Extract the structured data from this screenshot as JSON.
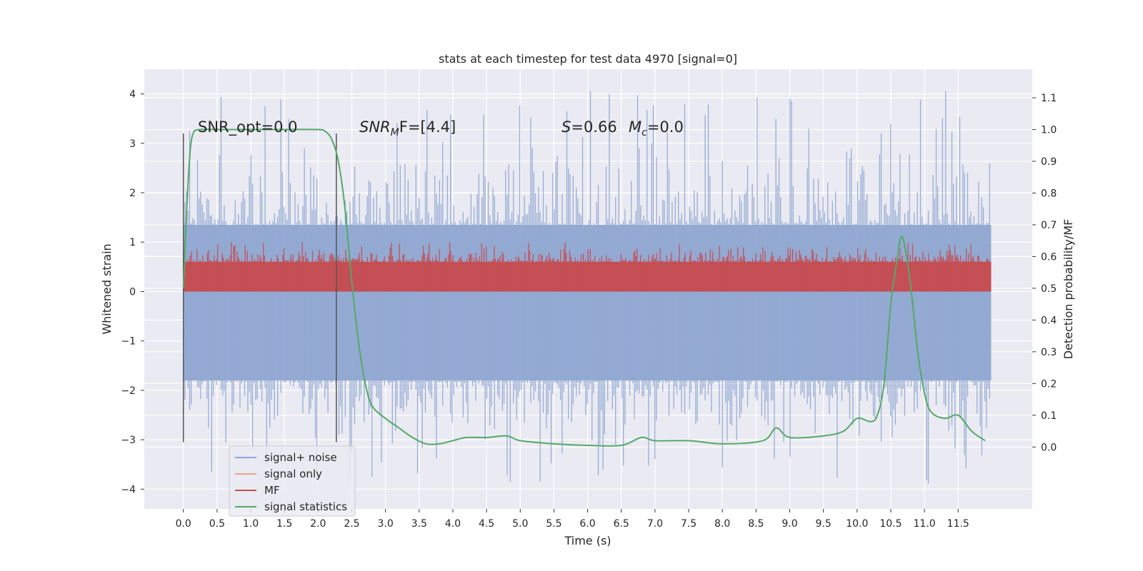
{
  "chart_data": {
    "type": "line",
    "title": "stats at each timestep for test data 4970 [signal=0]",
    "xlabel": "Time (s)",
    "ylabel": "Whitened strain",
    "ylabel_right": "Detection probability/MF",
    "xlim": [
      -0.58,
      12.6
    ],
    "ylim": [
      -4.4,
      4.5
    ],
    "ylim_right": [
      -0.195,
      1.19
    ],
    "x_ticks": [
      "0.0",
      "0.5",
      "1.0",
      "1.5",
      "2.0",
      "2.5",
      "3.0",
      "3.5",
      "4.0",
      "4.5",
      "5.0",
      "5.5",
      "6.0",
      "6.5",
      "7.0",
      "7.5",
      "8.0",
      "8.5",
      "9.0",
      "9.5",
      "10.0",
      "10.5",
      "11.0",
      "11.5"
    ],
    "y_ticks": [
      "4",
      "3",
      "2",
      "1",
      "0",
      "−1",
      "−2",
      "−3",
      "−4"
    ],
    "y_right_ticks": [
      "1.1",
      "1.0",
      "0.9",
      "0.8",
      "0.7",
      "0.6",
      "0.5",
      "0.4",
      "0.3",
      "0.2",
      "0.1",
      "0.0"
    ],
    "grid": true,
    "colors": {
      "background": "#eaeaf2",
      "grid": "#ffffff",
      "signal_noise": "#8fa6d0",
      "signal_only": "#e8a488",
      "mf": "#c44e52",
      "stats": "#55a868",
      "vline": "#555555"
    },
    "annotations": {
      "snr_opt": "SNR_opt=0.0",
      "snr_mf_base": "SNR",
      "snr_mf_sub": "M",
      "snr_mf_rest": "F=[4.4]",
      "s_label": "S",
      "s_value": "=0.66",
      "mc_label": "M",
      "mc_sub": "c",
      "mc_value": "=0.0"
    },
    "vertical_lines_x": [
      0.0,
      2.27
    ],
    "series": [
      {
        "name": "signal+ noise",
        "axis": "left",
        "style": "noise-band",
        "x_range": [
          0.0,
          11.99
        ],
        "band": [
          -1.8,
          1.35
        ],
        "extremes": [
          -3.9,
          4.1
        ]
      },
      {
        "name": "signal only",
        "axis": "left",
        "style": "line",
        "x": [],
        "y": []
      },
      {
        "name": "MF",
        "axis": "left",
        "style": "noise-band",
        "x_range": [
          0.0,
          11.99
        ],
        "band": [
          0.0,
          0.6
        ],
        "extremes": [
          0.0,
          1.0
        ]
      },
      {
        "name": "signal statistics",
        "axis": "right",
        "style": "line",
        "x": [
          0.0,
          0.05,
          0.1,
          0.15,
          0.25,
          0.5,
          1.0,
          1.5,
          2.0,
          2.1,
          2.2,
          2.3,
          2.4,
          2.5,
          2.6,
          2.7,
          2.8,
          3.0,
          3.2,
          3.4,
          3.6,
          3.8,
          4.0,
          4.2,
          4.5,
          4.8,
          5.0,
          5.5,
          6.0,
          6.5,
          6.8,
          7.0,
          7.5,
          8.0,
          8.6,
          8.8,
          9.0,
          9.5,
          9.8,
          10.0,
          10.2,
          10.3,
          10.4,
          10.5,
          10.6,
          10.65,
          10.7,
          10.8,
          10.9,
          11.0,
          11.1,
          11.3,
          11.5,
          11.7,
          11.9
        ],
        "y": [
          0.5,
          0.75,
          0.93,
          0.99,
          1.0,
          1.0,
          1.0,
          1.0,
          1.0,
          0.995,
          0.97,
          0.9,
          0.75,
          0.52,
          0.33,
          0.2,
          0.13,
          0.09,
          0.06,
          0.03,
          0.01,
          0.01,
          0.02,
          0.03,
          0.03,
          0.035,
          0.02,
          0.01,
          0.005,
          0.005,
          0.03,
          0.02,
          0.02,
          0.01,
          0.02,
          0.06,
          0.03,
          0.035,
          0.05,
          0.09,
          0.08,
          0.1,
          0.2,
          0.45,
          0.6,
          0.66,
          0.64,
          0.5,
          0.3,
          0.17,
          0.11,
          0.09,
          0.1,
          0.05,
          0.02
        ]
      }
    ],
    "legend": {
      "placement": "lower-left",
      "entries": [
        "signal+ noise",
        "signal only",
        "MF",
        "signal statistics"
      ]
    }
  }
}
